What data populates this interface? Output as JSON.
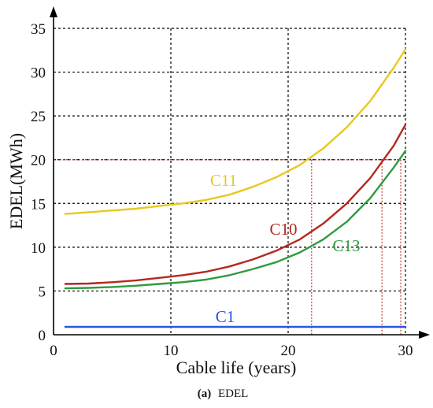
{
  "chart_data": {
    "type": "line",
    "xlabel": "Cable life (years)",
    "ylabel": "EDEL(MWh)",
    "xlim": [
      0,
      30
    ],
    "ylim": [
      0,
      35
    ],
    "x_ticks": [
      "0",
      "10",
      "20",
      "30"
    ],
    "y_ticks": [
      "0",
      "5",
      "10",
      "15",
      "20",
      "25",
      "30",
      "35"
    ],
    "grid": true,
    "grid_style": "dotted",
    "series": [
      {
        "name": "C11",
        "color": "#e8c81f",
        "x": [
          1,
          3,
          5,
          7,
          9,
          11,
          13,
          15,
          17,
          19,
          21,
          23,
          25,
          27,
          29,
          30
        ],
        "y": [
          13.8,
          14.0,
          14.2,
          14.4,
          14.7,
          15.0,
          15.4,
          16.0,
          16.9,
          18.0,
          19.4,
          21.3,
          23.7,
          26.7,
          30.5,
          32.6
        ]
      },
      {
        "name": "C10",
        "color": "#b5271e",
        "x": [
          1,
          3,
          5,
          7,
          9,
          11,
          13,
          15,
          17,
          19,
          21,
          23,
          25,
          27,
          29,
          30
        ],
        "y": [
          5.8,
          5.85,
          6.0,
          6.2,
          6.5,
          6.8,
          7.2,
          7.8,
          8.6,
          9.6,
          10.9,
          12.7,
          15.0,
          17.9,
          21.6,
          24.0
        ]
      },
      {
        "name": "C13",
        "color": "#2e9a3e",
        "x": [
          1,
          3,
          5,
          7,
          9,
          11,
          13,
          15,
          17,
          19,
          21,
          23,
          25,
          27,
          29,
          30
        ],
        "y": [
          5.3,
          5.35,
          5.45,
          5.6,
          5.8,
          6.0,
          6.3,
          6.8,
          7.5,
          8.3,
          9.4,
          10.9,
          12.9,
          15.6,
          19.1,
          21.0
        ]
      },
      {
        "name": "C1",
        "color": "#2a56e0",
        "x": [
          1,
          30
        ],
        "y": [
          0.9,
          0.9
        ]
      }
    ],
    "annotations": {
      "threshold_y": 20,
      "threshold_color": "#c0392b",
      "drop_lines_x": [
        22,
        28,
        29.6
      ]
    },
    "caption": {
      "label": "(a)",
      "text": "EDEL"
    }
  }
}
